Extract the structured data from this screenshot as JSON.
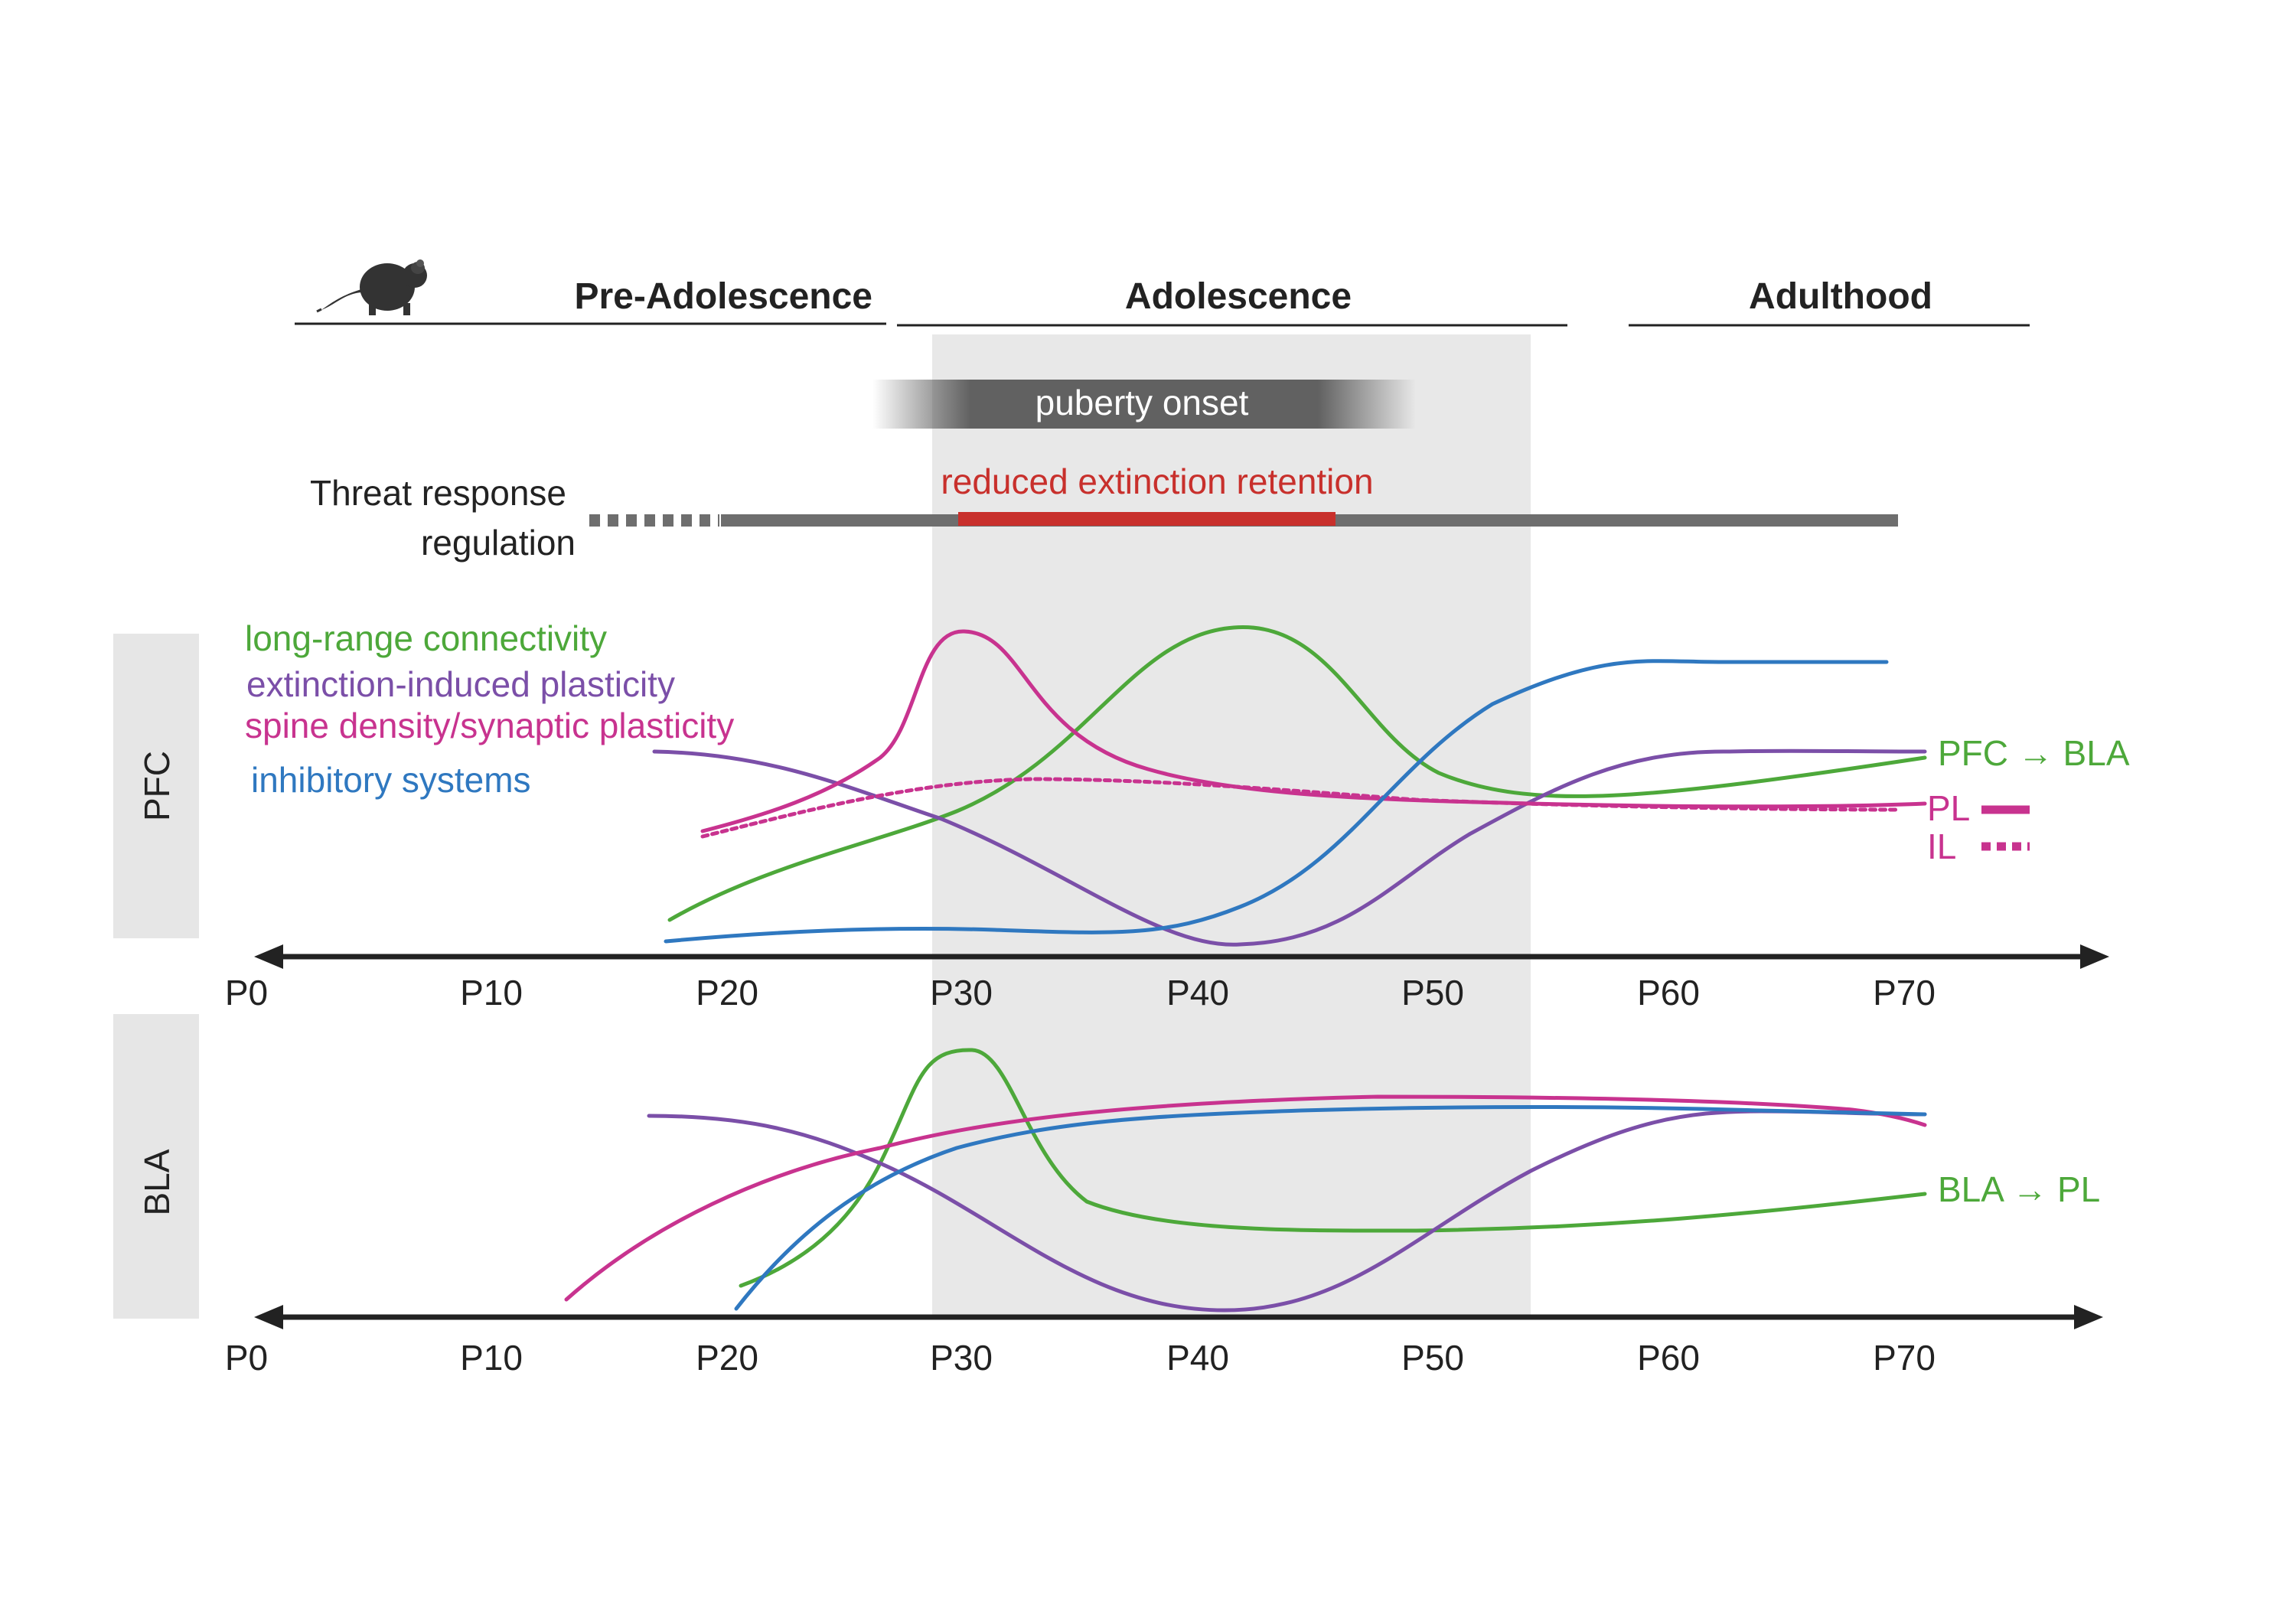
{
  "stages": {
    "pre_adolescence": "Pre-Adolescence",
    "adolescence": "Adolescence",
    "adulthood": "Adulthood"
  },
  "puberty_label": "puberty onset",
  "threat": {
    "label_line1": "Threat response",
    "label_line2": "regulation",
    "highlight_label": "reduced extinction retention"
  },
  "panels": {
    "pfc": "PFC",
    "bla": "BLA"
  },
  "legend": {
    "green": "long-range connectivity",
    "purple": "extinction-induced plasticity",
    "magenta": "spine density/synaptic plasticity",
    "blue": "inhibitory systems"
  },
  "end_labels": {
    "pfc_bla": "PFC → BLA",
    "pl": "PL",
    "il": "IL",
    "bla_pl": "BLA → PL"
  },
  "axis_ticks": [
    "P0",
    "P10",
    "P20",
    "P30",
    "P40",
    "P50",
    "P60",
    "P70"
  ],
  "colors": {
    "green": "#4da83a",
    "purple": "#7b4fa8",
    "magenta": "#c8338f",
    "blue": "#2f78c0",
    "red": "#c8302c",
    "gray_bar": "#6e6e6e",
    "adolescence_band": "#e8e8e8",
    "panel_tab": "#e6e6e6"
  },
  "icons": {
    "mouse": "mouse-icon"
  }
}
